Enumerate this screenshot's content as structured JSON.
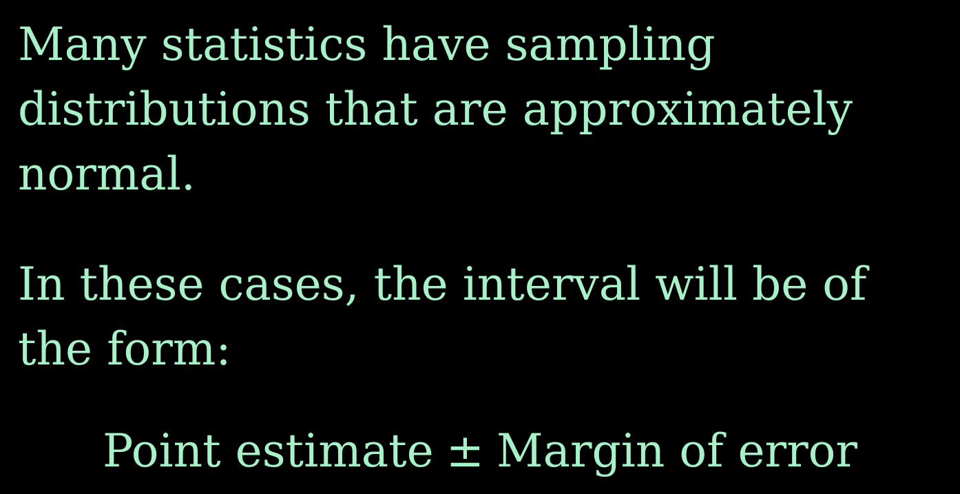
{
  "colors": {
    "background": "#000000",
    "text": "#a8f0c8"
  },
  "paragraph1": {
    "lines": [
      "Many statistics have sampling",
      "distributions that are approximately",
      "normal."
    ]
  },
  "paragraph2": {
    "lines": [
      "In these cases, the interval will be of",
      "the form:"
    ]
  },
  "formula": {
    "left": "Point estimate",
    "operator": "±",
    "right": "Margin of error"
  }
}
